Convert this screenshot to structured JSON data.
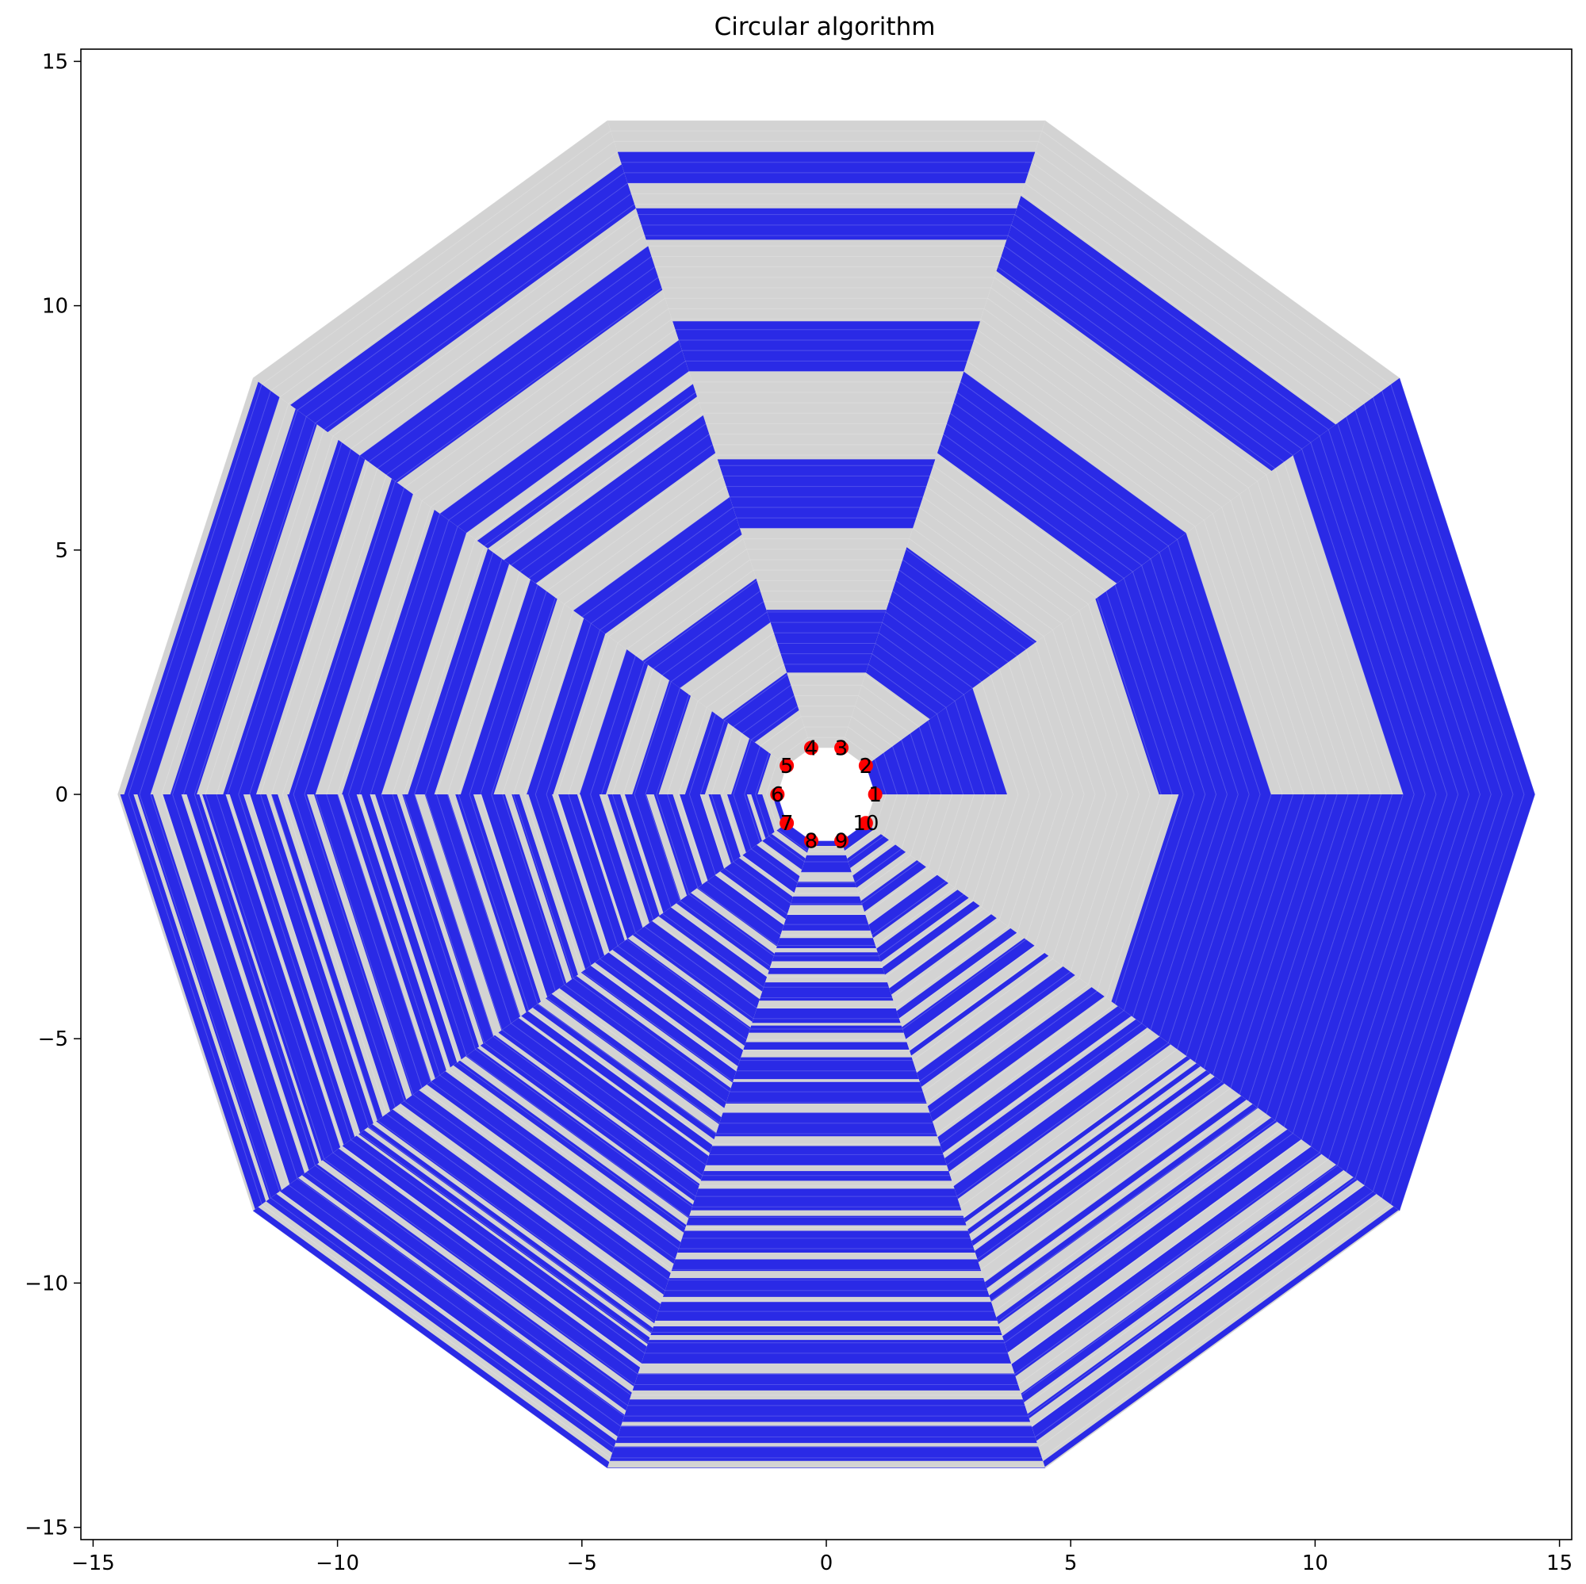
{
  "chart_data": {
    "type": "scatter",
    "title": "Circular algorithm",
    "xlabel": "",
    "ylabel": "",
    "xlim": [
      -15.25,
      15.25
    ],
    "ylim": [
      -15.25,
      15.25
    ],
    "xticks": [
      -15,
      -10,
      -5,
      0,
      5,
      10,
      15
    ],
    "yticks": [
      -15,
      -10,
      -5,
      0,
      5,
      10,
      15
    ],
    "xtick_labels": [
      "−15",
      "−10",
      "−5",
      "0",
      "5",
      "10",
      "15"
    ],
    "ytick_labels": [
      "−15",
      "−10",
      "−5",
      "0",
      "5",
      "10",
      "15"
    ],
    "grid": false,
    "decagon_radii": {
      "inner": 1.0,
      "outer": 14.5
    },
    "colors": {
      "stripe_on": "#2a2ae6",
      "stripe_off": "#d3d3d3",
      "node": "#ff0000",
      "text": "#000000"
    },
    "nodes": [
      {
        "label": "1",
        "x": 1.0,
        "y": 0.0
      },
      {
        "label": "2",
        "x": 0.809,
        "y": 0.588
      },
      {
        "label": "3",
        "x": 0.309,
        "y": 0.951
      },
      {
        "label": "4",
        "x": -0.309,
        "y": 0.951
      },
      {
        "label": "5",
        "x": -0.809,
        "y": 0.588
      },
      {
        "label": "6",
        "x": -1.0,
        "y": 0.0
      },
      {
        "label": "7",
        "x": -0.809,
        "y": -0.588
      },
      {
        "label": "8",
        "x": -0.309,
        "y": -0.951
      },
      {
        "label": "9",
        "x": 0.309,
        "y": -0.951
      },
      {
        "label": "10",
        "x": 0.809,
        "y": -0.588
      }
    ],
    "sectors": [
      {
        "from": 1,
        "to": 2,
        "blue_bands": [
          [
            0.0,
            0.2
          ],
          [
            0.43,
            0.6
          ],
          [
            0.8,
            1.0
          ]
        ]
      },
      {
        "from": 2,
        "to": 3,
        "blue_bands": [
          [
            0.12,
            0.32
          ],
          [
            0.47,
            0.6
          ],
          [
            0.76,
            0.88
          ]
        ]
      },
      {
        "from": 3,
        "to": 4,
        "blue_bands": [
          [
            0.12,
            0.22
          ],
          [
            0.35,
            0.46
          ],
          [
            0.6,
            0.68
          ],
          [
            0.81,
            0.86
          ],
          [
            0.9,
            0.95
          ]
        ]
      },
      {
        "from": 4,
        "to": 5,
        "blue_bands": [
          [
            0.06,
            0.12
          ],
          [
            0.2,
            0.27
          ],
          [
            0.34,
            0.4
          ],
          [
            0.47,
            0.53
          ],
          [
            0.56,
            0.58
          ],
          [
            0.6,
            0.65
          ],
          [
            0.73,
            0.8
          ],
          [
            0.86,
            0.93
          ]
        ]
      },
      {
        "from": 5,
        "to": 6,
        "blue_bands": [
          [
            0.03,
            0.07
          ],
          [
            0.11,
            0.14
          ],
          [
            0.18,
            0.22
          ],
          [
            0.26,
            0.3
          ],
          [
            0.34,
            0.38
          ],
          [
            0.43,
            0.48
          ],
          [
            0.52,
            0.56
          ],
          [
            0.6,
            0.66
          ],
          [
            0.7,
            0.74
          ],
          [
            0.79,
            0.84
          ],
          [
            0.88,
            0.92
          ],
          [
            0.95,
            0.99
          ]
        ]
      },
      {
        "from": 6,
        "to": 7,
        "pattern": "dense-blue"
      },
      {
        "from": 7,
        "to": 8,
        "pattern": "dense-blue"
      },
      {
        "from": 8,
        "to": 9,
        "pattern": "dense-blue"
      },
      {
        "from": 9,
        "to": 10,
        "pattern": "medium-blue"
      },
      {
        "from": 10,
        "to": 1,
        "blue_bands": [
          [
            0.46,
            1.0
          ]
        ]
      }
    ]
  }
}
